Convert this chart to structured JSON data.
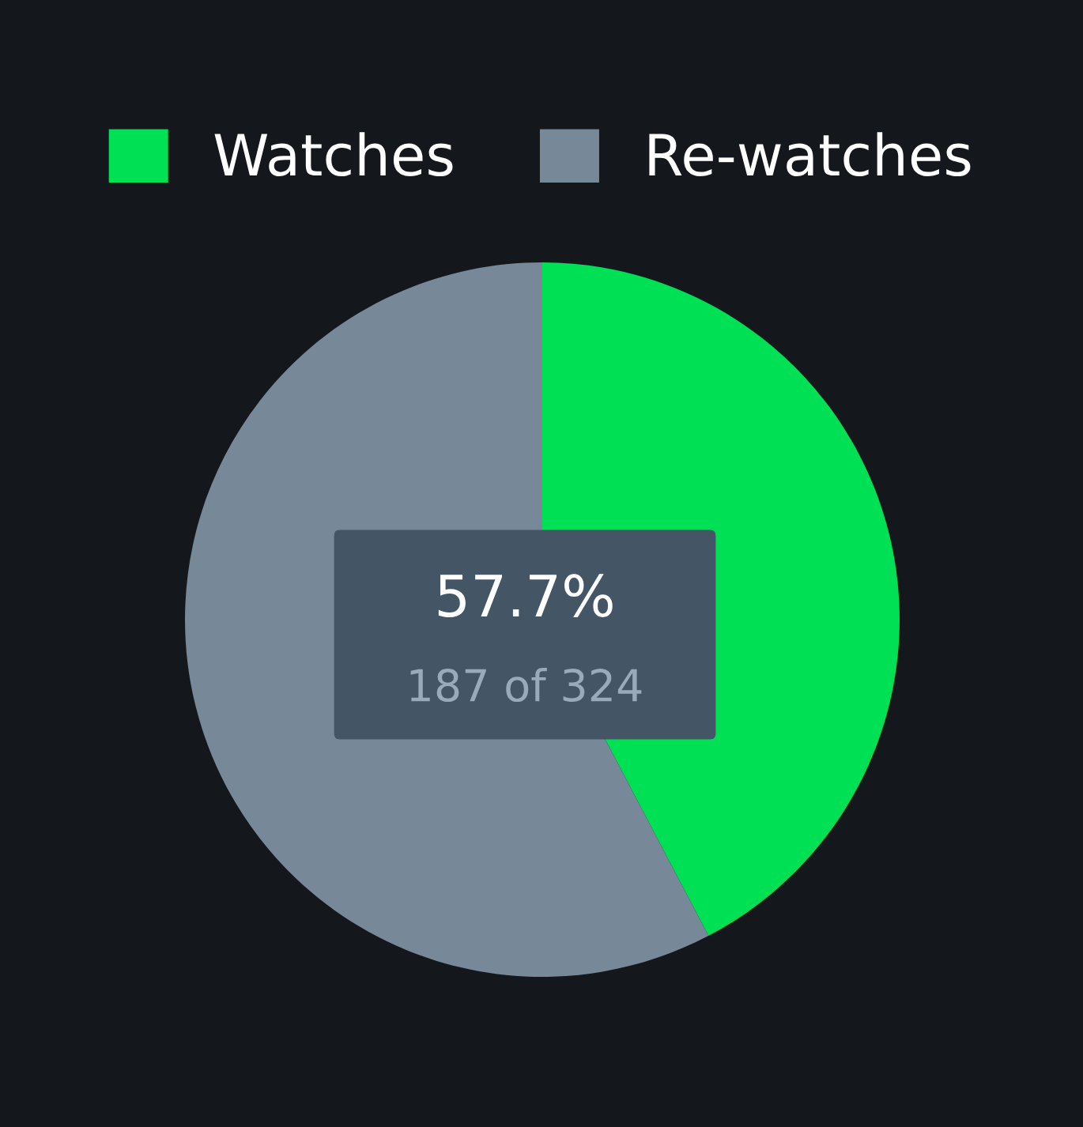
{
  "chart_data": {
    "type": "pie",
    "categories": [
      "Watches",
      "Re-watches"
    ],
    "values": [
      42.3,
      57.7
    ],
    "colors": [
      "#00e054",
      "#778899"
    ],
    "legend": "top",
    "annotations": [
      "57.7%",
      "187 of 324"
    ]
  }
}
